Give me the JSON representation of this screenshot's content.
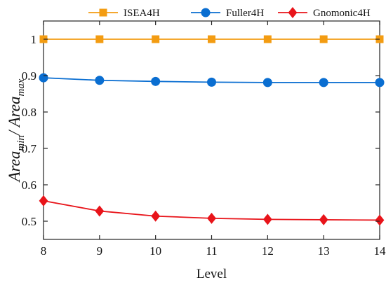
{
  "chart_data": {
    "type": "line",
    "xlabel": "Level",
    "ylabel": {
      "part1": "Area",
      "sub1": "min",
      "slash": "/ ",
      "part2": "Area",
      "sub2": "max"
    },
    "x": [
      8,
      9,
      10,
      11,
      12,
      13,
      14
    ],
    "xlim": [
      8,
      14
    ],
    "ylim": [
      0.45,
      1.05
    ],
    "yticks": [
      0.5,
      0.6,
      0.7,
      0.8,
      0.9,
      1
    ],
    "ytick_labels": [
      "0.5",
      "0.6",
      "0.7",
      "0.8",
      "0.9",
      "1"
    ],
    "xticks": [
      8,
      9,
      10,
      11,
      12,
      13,
      14
    ],
    "legend_position": "top",
    "grid": false,
    "series": [
      {
        "name": "ISEA4H",
        "marker": "square",
        "color": "#F39C12",
        "values": [
          1.0,
          1.0,
          1.0,
          1.0,
          1.0,
          1.0,
          1.0
        ]
      },
      {
        "name": "Fuller4H",
        "marker": "circle",
        "color": "#0A6ED1",
        "values": [
          0.894,
          0.887,
          0.884,
          0.882,
          0.881,
          0.881,
          0.881
        ]
      },
      {
        "name": "Gnomonic4H",
        "marker": "diamond",
        "color": "#E8141A",
        "values": [
          0.556,
          0.528,
          0.514,
          0.508,
          0.505,
          0.504,
          0.503
        ]
      }
    ]
  }
}
